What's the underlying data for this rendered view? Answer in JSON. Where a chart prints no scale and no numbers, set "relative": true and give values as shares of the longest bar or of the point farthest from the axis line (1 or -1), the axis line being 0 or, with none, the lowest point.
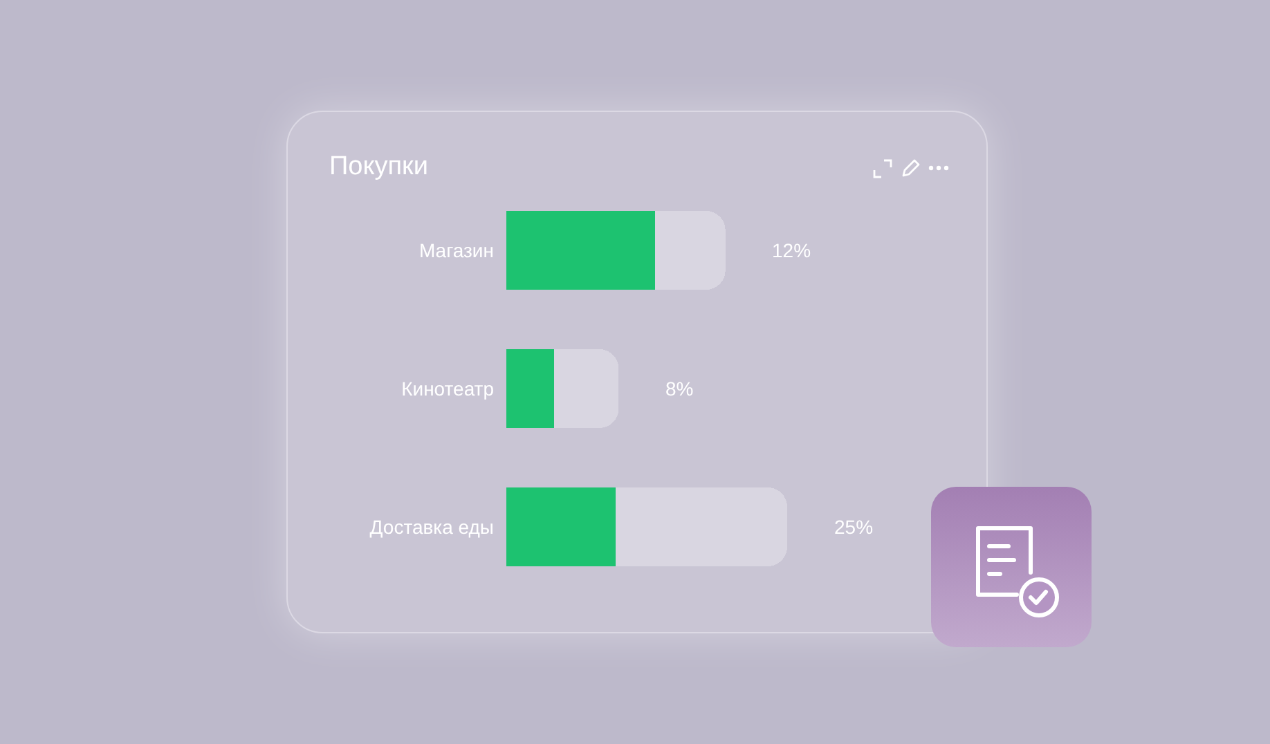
{
  "chart_data": {
    "type": "bar",
    "orientation": "horizontal",
    "stacked": true,
    "relative": true,
    "title": "Покупки",
    "categories": [
      "Магазин",
      "Кинотеатр",
      "Доставка еды"
    ],
    "series": [
      {
        "color": "#1dc270",
        "values": [
          0.53,
          0.17,
          0.39
        ]
      },
      {
        "color": "#d9d6e1",
        "values": [
          0.25,
          0.23,
          0.61
        ]
      }
    ],
    "annotations": [
      "12%",
      "8%",
      "25%"
    ]
  }
}
